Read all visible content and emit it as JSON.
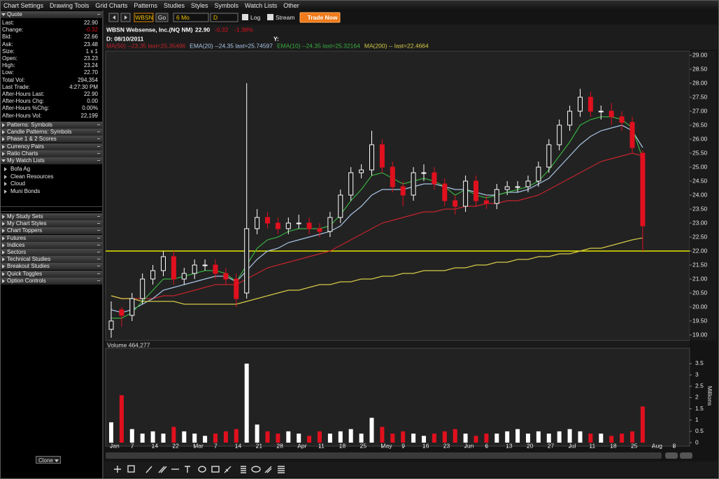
{
  "menu": [
    "Chart Settings",
    "Drawing Tools",
    "Grid Charts",
    "Patterns",
    "Studies",
    "Styles",
    "Symbols",
    "Watch Lists",
    "Other"
  ],
  "quote": {
    "title": "Quote",
    "rows": [
      [
        "Last:",
        "22.90"
      ],
      [
        "Change:",
        "-0.32"
      ],
      [
        "Bid:",
        "22.66"
      ],
      [
        "Ask:",
        "23.48"
      ],
      [
        "Size:",
        "1 x 1"
      ],
      [
        "Open:",
        "23.23"
      ],
      [
        "High:",
        "23.24"
      ],
      [
        "Low:",
        "22.70"
      ],
      [
        "Total Vol:",
        "294,354"
      ],
      [
        "Last Trade:",
        "4:27:30 PM"
      ],
      [
        "After-Hours Last:",
        "22.90"
      ],
      [
        "After-Hours Chg:",
        "0.00"
      ],
      [
        "After-Hours %Chg:",
        "0.00%"
      ],
      [
        "After-Hours Vol:",
        "22,199"
      ]
    ]
  },
  "panels": [
    "Patterns: Symbols",
    "Candle Patterns: Symbols",
    "Phase 1 & 2 Scores",
    "Currency Pairs",
    "Ratio Charts"
  ],
  "watch_lists": {
    "title": "My Watch Lists",
    "items": [
      "Bofa Ag",
      "Clean Resources",
      "Cloud",
      "Muni Bonds"
    ]
  },
  "panels2": [
    "My Study Sets",
    "My Chart Styles",
    "Chart Toppers",
    "Futures",
    "Indices",
    "Sectors",
    "Technical Studies",
    "Breakout Studies",
    "Quick Toggles",
    "Option Controls"
  ],
  "toolbar": {
    "symbol": "WBSN",
    "go": "Go",
    "period": "6 Mo",
    "interval": "D",
    "log": "Log",
    "stream": "Stream",
    "trade": "Trade Now"
  },
  "footer": {
    "clone": "Clone"
  },
  "chart_data": {
    "type": "candlestick",
    "title": "WBSN Websense, Inc.(NQ NM)",
    "last": "22.90",
    "change": "-0.32",
    "change_pct": "-1.38%",
    "date_label": "D: 08/10/2011",
    "y_label": "Y:",
    "categories": [
      "Jan",
      null,
      "7",
      null,
      "14",
      null,
      "22",
      null,
      "Mar",
      null,
      "7",
      null,
      "14",
      null,
      "21",
      null,
      "28",
      null,
      "Apr",
      null,
      "11",
      null,
      "18",
      null,
      "25",
      null,
      "May",
      null,
      "9",
      null,
      "16",
      null,
      "23",
      null,
      "Jun",
      null,
      "6",
      null,
      "13",
      null,
      "20",
      null,
      "27",
      null,
      "Jul",
      null,
      "11",
      null,
      "18",
      null,
      "25",
      null,
      "Aug",
      null,
      "8",
      null
    ],
    "open": [
      19.2,
      19.9,
      19.7,
      20.3,
      21.0,
      21.3,
      21.8,
      21.0,
      21.2,
      21.5,
      21.5,
      21.2,
      21.0,
      20.5,
      22.8,
      23.2,
      23.0,
      22.8,
      23.0,
      23.0,
      22.8,
      22.7,
      23.2,
      24.0,
      24.8,
      24.9,
      25.8,
      25.0,
      24.3,
      24.0,
      24.8,
      24.8,
      24.4,
      23.8,
      23.6,
      24.5,
      23.8,
      23.7,
      24.2,
      24.3,
      24.3,
      24.5,
      25.0,
      25.8,
      26.5,
      27.0,
      27.5,
      27.0,
      27.0,
      26.8,
      26.6,
      25.5,
      null,
      null,
      null,
      null
    ],
    "high": [
      20.2,
      20.0,
      20.5,
      21.2,
      21.5,
      22.0,
      22.0,
      21.4,
      21.7,
      21.7,
      21.7,
      21.4,
      21.2,
      28.0,
      23.5,
      23.4,
      23.2,
      23.2,
      23.3,
      23.2,
      23.0,
      23.4,
      24.2,
      25.0,
      25.1,
      26.3,
      26.0,
      25.2,
      24.5,
      25.0,
      25.1,
      25.0,
      24.6,
      24.0,
      24.7,
      24.7,
      24.0,
      24.4,
      24.5,
      24.5,
      24.7,
      25.2,
      26.0,
      26.7,
      27.2,
      27.8,
      27.7,
      27.2,
      27.3,
      27.0,
      26.8,
      25.6,
      null,
      null,
      null,
      null
    ],
    "low": [
      18.9,
      19.3,
      19.5,
      20.1,
      20.8,
      21.1,
      20.8,
      20.8,
      21.0,
      21.3,
      21.0,
      20.8,
      20.0,
      20.3,
      22.6,
      22.8,
      22.6,
      22.6,
      22.8,
      22.6,
      22.5,
      22.5,
      23.0,
      23.8,
      24.6,
      24.7,
      24.8,
      24.1,
      23.6,
      23.8,
      24.5,
      24.2,
      23.6,
      23.3,
      23.4,
      23.6,
      23.5,
      23.5,
      24.0,
      24.1,
      24.1,
      24.3,
      24.8,
      25.6,
      26.3,
      26.8,
      26.8,
      26.7,
      26.5,
      26.3,
      25.5,
      22.0,
      null,
      null,
      null,
      null
    ],
    "close": [
      19.5,
      19.7,
      20.3,
      21.0,
      21.3,
      21.8,
      21.0,
      21.2,
      21.5,
      21.5,
      21.2,
      21.0,
      20.3,
      22.8,
      23.2,
      23.0,
      22.8,
      23.0,
      23.0,
      22.8,
      22.7,
      23.2,
      24.0,
      24.8,
      24.9,
      25.8,
      25.0,
      24.3,
      24.0,
      24.8,
      24.8,
      24.4,
      23.8,
      23.6,
      24.5,
      23.8,
      23.7,
      24.2,
      24.3,
      24.3,
      24.5,
      25.0,
      25.8,
      26.5,
      27.0,
      27.5,
      27.0,
      27.0,
      26.8,
      26.6,
      25.7,
      22.9,
      null,
      null,
      null,
      null
    ],
    "up_color": "#ffffff",
    "down_color": "#e0101e",
    "ylim": [
      18.8,
      29.15
    ],
    "yticks": [
      {
        "value": 29,
        "label": "29.00"
      },
      {
        "value": 28.5,
        "label": "28.50"
      },
      {
        "value": 28,
        "label": "28.00"
      },
      {
        "value": 27.5,
        "label": "27.50"
      },
      {
        "value": 27,
        "label": "27.00"
      },
      {
        "value": 26.5,
        "label": "26.50"
      },
      {
        "value": 26,
        "label": "26.00"
      },
      {
        "value": 25.5,
        "label": "25.50"
      },
      {
        "value": 25,
        "label": "25.00"
      },
      {
        "value": 24.5,
        "label": "24.50"
      },
      {
        "value": 24,
        "label": "24.00"
      },
      {
        "value": 23.5,
        "label": "23.50"
      },
      {
        "value": 23,
        "label": "23.00"
      },
      {
        "value": 22.5,
        "label": "22.50"
      },
      {
        "value": 22,
        "label": "22.00"
      },
      {
        "value": 21.5,
        "label": "21.50"
      },
      {
        "value": 21,
        "label": "21.00"
      },
      {
        "value": 20.5,
        "label": "20.50"
      },
      {
        "value": 20,
        "label": "20.00"
      },
      {
        "value": 19.5,
        "label": "19.50"
      },
      {
        "value": 19,
        "label": "19.00"
      }
    ],
    "hline": {
      "value": 22,
      "color": "#e8e800"
    },
    "series": [
      {
        "name": "MA(50) --23.35 last=25.35496",
        "color": "#c4242c",
        "values": [
          20.4,
          20.3,
          20.3,
          20.3,
          20.3,
          20.4,
          20.4,
          20.5,
          20.6,
          20.7,
          20.8,
          20.8,
          20.8,
          21.0,
          21.2,
          21.4,
          21.5,
          21.6,
          21.7,
          21.8,
          21.9,
          22.0,
          22.2,
          22.4,
          22.6,
          22.8,
          23.0,
          23.1,
          23.2,
          23.3,
          23.4,
          23.4,
          23.5,
          23.5,
          23.6,
          23.6,
          23.7,
          23.7,
          23.8,
          23.8,
          23.9,
          24.0,
          24.2,
          24.4,
          24.6,
          24.8,
          25.0,
          25.2,
          25.3,
          25.4,
          25.5,
          25.4,
          null,
          null,
          null,
          null
        ]
      },
      {
        "name": "EMA(20) --24.35 last=25.74597",
        "color": "#a9c6e6",
        "values": [
          19.9,
          19.8,
          19.9,
          20.1,
          20.3,
          20.6,
          20.7,
          20.8,
          20.9,
          21.0,
          21.1,
          21.1,
          20.9,
          21.3,
          21.7,
          22.0,
          22.1,
          22.3,
          22.4,
          22.5,
          22.6,
          22.7,
          22.9,
          23.3,
          23.6,
          24.0,
          24.2,
          24.2,
          24.2,
          24.3,
          24.4,
          24.4,
          24.3,
          24.2,
          24.2,
          24.1,
          24.0,
          24.0,
          24.1,
          24.1,
          24.2,
          24.4,
          24.6,
          25.0,
          25.4,
          25.8,
          26.1,
          26.3,
          26.4,
          26.5,
          26.3,
          25.7,
          null,
          null,
          null,
          null
        ]
      },
      {
        "name": "EMA(10) --24.35 last=25.32164",
        "color": "#38b040",
        "values": [
          19.6,
          19.6,
          19.8,
          20.2,
          20.6,
          21.0,
          21.0,
          21.1,
          21.2,
          21.3,
          21.3,
          21.2,
          20.9,
          21.5,
          22.1,
          22.4,
          22.5,
          22.7,
          22.8,
          22.8,
          22.8,
          22.9,
          23.3,
          23.8,
          24.2,
          24.7,
          24.8,
          24.6,
          24.4,
          24.5,
          24.6,
          24.5,
          24.3,
          24.0,
          24.2,
          24.0,
          23.9,
          24.0,
          24.1,
          24.2,
          24.3,
          24.5,
          24.9,
          25.4,
          25.9,
          26.5,
          26.7,
          26.8,
          26.8,
          26.7,
          26.4,
          25.3,
          null,
          null,
          null,
          null
        ]
      },
      {
        "name": "MA(200) -- last=22.4664",
        "color": "#d6ca48",
        "values": [
          20.4,
          20.3,
          20.3,
          20.2,
          20.2,
          20.2,
          20.2,
          20.1,
          20.1,
          20.1,
          20.1,
          20.1,
          20.1,
          20.2,
          20.3,
          20.4,
          20.5,
          20.6,
          20.6,
          20.7,
          20.8,
          20.8,
          20.9,
          20.9,
          21.0,
          21.0,
          21.1,
          21.1,
          21.2,
          21.2,
          21.3,
          21.3,
          21.3,
          21.4,
          21.4,
          21.5,
          21.5,
          21.6,
          21.6,
          21.7,
          21.7,
          21.8,
          21.8,
          21.9,
          21.9,
          22.0,
          22.1,
          22.1,
          22.2,
          22.3,
          22.4,
          22.47,
          null,
          null,
          null,
          null
        ]
      }
    ],
    "volume": {
      "label": "Volume 464,277",
      "axis_label": "Millions",
      "values": [
        0.9,
        2.1,
        0.6,
        0.4,
        0.5,
        0.4,
        0.7,
        0.5,
        0.4,
        0.3,
        0.4,
        0.5,
        0.6,
        3.5,
        0.8,
        0.5,
        0.4,
        0.5,
        0.4,
        0.3,
        0.5,
        0.4,
        0.5,
        0.6,
        0.4,
        1.1,
        0.7,
        0.4,
        0.5,
        0.4,
        0.3,
        0.4,
        0.5,
        0.6,
        0.4,
        0.3,
        0.4,
        0.4,
        0.5,
        0.6,
        0.4,
        0.5,
        0.4,
        0.5,
        0.6,
        0.5,
        0.4,
        0.4,
        0.3,
        0.4,
        0.5,
        1.6,
        null,
        null,
        null,
        null
      ],
      "y2lim": [
        0,
        4.15
      ],
      "y2ticks": [
        0,
        0.5,
        1,
        1.5,
        2,
        2.5,
        3,
        3.5
      ]
    }
  }
}
